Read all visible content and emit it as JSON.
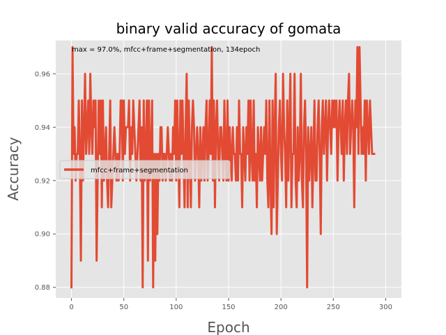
{
  "chart_data": {
    "type": "line",
    "title": "binary valid accuracy of gomata",
    "xlabel": "Epoch",
    "ylabel": "Accuracy",
    "xlim": [
      -15,
      315
    ],
    "ylim": [
      0.876,
      0.9725
    ],
    "xticks": [
      0,
      50,
      100,
      150,
      200,
      250,
      300
    ],
    "yticks": [
      0.88,
      0.9,
      0.92,
      0.94,
      0.96
    ],
    "ytick_labels": [
      "0.88",
      "0.90",
      "0.92",
      "0.94",
      "0.96"
    ],
    "grid": true,
    "legend_placement": "center-left",
    "annotation": "max  = 97.0%, mfcc+frame+segmentation, 134epoch",
    "colors": {
      "plot_background": "#e5e5e5",
      "grid": "#ffffff",
      "series": "#e24a33"
    },
    "series": [
      {
        "name": "mfcc+frame+segmentation",
        "x_start": 0,
        "x_step": 1,
        "values": [
          0.88,
          0.97,
          0.93,
          0.94,
          0.92,
          0.93,
          0.93,
          0.95,
          0.93,
          0.89,
          0.95,
          0.92,
          0.94,
          0.96,
          0.93,
          0.94,
          0.95,
          0.93,
          0.96,
          0.94,
          0.93,
          0.95,
          0.94,
          0.95,
          0.89,
          0.92,
          0.95,
          0.93,
          0.95,
          0.91,
          0.95,
          0.92,
          0.93,
          0.94,
          0.92,
          0.91,
          0.93,
          0.95,
          0.91,
          0.92,
          0.93,
          0.94,
          0.93,
          0.92,
          0.93,
          0.92,
          0.93,
          0.95,
          0.95,
          0.92,
          0.95,
          0.93,
          0.94,
          0.94,
          0.94,
          0.95,
          0.92,
          0.94,
          0.93,
          0.95,
          0.94,
          0.93,
          0.92,
          0.93,
          0.94,
          0.95,
          0.92,
          0.94,
          0.88,
          0.95,
          0.92,
          0.93,
          0.95,
          0.89,
          0.95,
          0.92,
          0.93,
          0.95,
          0.88,
          0.93,
          0.89,
          0.93,
          0.9,
          0.93,
          0.92,
          0.94,
          0.94,
          0.92,
          0.93,
          0.93,
          0.92,
          0.93,
          0.94,
          0.93,
          0.92,
          0.93,
          0.92,
          0.94,
          0.93,
          0.95,
          0.92,
          0.95,
          0.93,
          0.91,
          0.95,
          0.93,
          0.95,
          0.93,
          0.91,
          0.94,
          0.96,
          0.91,
          0.95,
          0.93,
          0.91,
          0.94,
          0.95,
          0.94,
          0.92,
          0.93,
          0.94,
          0.93,
          0.91,
          0.94,
          0.92,
          0.93,
          0.94,
          0.92,
          0.94,
          0.95,
          0.92,
          0.93,
          0.95,
          0.93,
          0.97,
          0.92,
          0.95,
          0.91,
          0.94,
          0.95,
          0.93,
          0.92,
          0.94,
          0.94,
          0.93,
          0.92,
          0.95,
          0.93,
          0.92,
          0.95,
          0.92,
          0.94,
          0.93,
          0.92,
          0.94,
          0.93,
          0.93,
          0.92,
          0.94,
          0.92,
          0.95,
          0.93,
          0.93,
          0.91,
          0.94,
          0.93,
          0.92,
          0.94,
          0.93,
          0.95,
          0.92,
          0.95,
          0.93,
          0.92,
          0.95,
          0.92,
          0.93,
          0.91,
          0.94,
          0.93,
          0.92,
          0.94,
          0.92,
          0.93,
          0.94,
          0.93,
          0.95,
          0.92,
          0.91,
          0.95,
          0.92,
          0.9,
          0.95,
          0.91,
          0.94,
          0.96,
          0.9,
          0.92,
          0.94,
          0.95,
          0.93,
          0.92,
          0.96,
          0.94,
          0.93,
          0.91,
          0.95,
          0.92,
          0.94,
          0.96,
          0.91,
          0.93,
          0.93,
          0.96,
          0.92,
          0.91,
          0.94,
          0.92,
          0.93,
          0.96,
          0.92,
          0.91,
          0.94,
          0.95,
          0.93,
          0.88,
          0.94,
          0.92,
          0.93,
          0.94,
          0.91,
          0.93,
          0.95,
          0.92,
          0.92,
          0.94,
          0.95,
          0.93,
          0.9,
          0.94,
          0.95,
          0.93,
          0.94,
          0.95,
          0.92,
          0.94,
          0.95,
          0.94,
          0.93,
          0.95,
          0.94,
          0.95,
          0.94,
          0.95,
          0.92,
          0.94,
          0.95,
          0.94,
          0.93,
          0.95,
          0.92,
          0.94,
          0.95,
          0.93,
          0.95,
          0.96,
          0.93,
          0.94,
          0.95,
          0.94,
          0.91,
          0.95,
          0.94,
          0.97,
          0.93,
          0.97,
          0.95,
          0.93,
          0.94,
          0.93,
          0.95,
          0.92,
          0.95,
          0.94,
          0.93,
          0.95,
          0.94,
          0.93,
          0.93,
          0.93
        ]
      }
    ]
  }
}
